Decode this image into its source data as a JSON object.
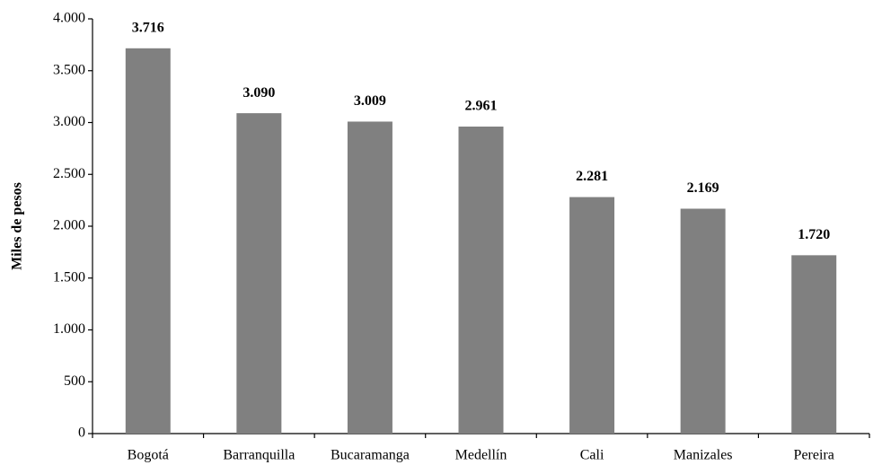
{
  "chart_data": {
    "type": "bar",
    "y_label": "Miles de pesos",
    "categories": [
      "Bogotá",
      "Barranquilla",
      "Bucaramanga",
      "Medellín",
      "Cali",
      "Manizales",
      "Pereira"
    ],
    "values": [
      3716,
      3090,
      3009,
      2961,
      2281,
      2169,
      1720
    ],
    "value_labels": [
      "3.716",
      "3.090",
      "3.009",
      "2.961",
      "2.281",
      "2.169",
      "1.720"
    ],
    "color": "#808080",
    "ylim": [
      0,
      4000
    ],
    "yticks": [
      0,
      500,
      {
        "value": 1000,
        "label": "1.000"
      },
      {
        "value": 1500,
        "label": "1.500"
      },
      {
        "value": 2000,
        "label": "2.000"
      },
      {
        "value": 2500,
        "label": "2.500"
      },
      {
        "value": 3000,
        "label": "3.000"
      },
      {
        "value": 3500,
        "label": "3.500"
      },
      {
        "value": 4000,
        "label": "4.000"
      }
    ],
    "grid": false
  }
}
